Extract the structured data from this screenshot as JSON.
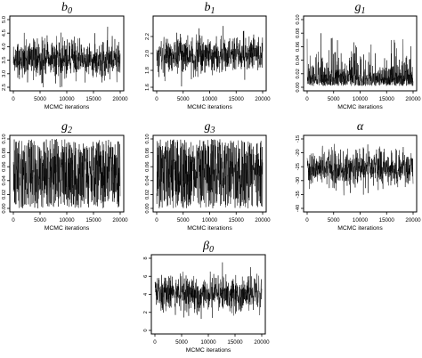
{
  "chart_data": [
    {
      "type": "line",
      "title": "b",
      "title_sub": "0",
      "xlabel": "MCMC iterations",
      "ylabel": "",
      "xlim": [
        0,
        20000
      ],
      "ylim": [
        2.5,
        5.0
      ],
      "xticks": [
        0,
        5000,
        10000,
        15000,
        20000
      ],
      "xtick_labels": [
        "0",
        "5000",
        "10000",
        "15000",
        "20000"
      ],
      "yticks": [
        2.5,
        3.0,
        3.5,
        4.0,
        4.5,
        5.0
      ],
      "ytick_labels": [
        "2.5",
        "3.0",
        "3.5",
        "4.0",
        "4.5",
        "5.0"
      ],
      "trace": {
        "n_iterations": 20000,
        "center": 3.55,
        "spread": 0.35,
        "min": 2.5,
        "max": 5.0,
        "distribution": "normal"
      },
      "grid": false,
      "color": "#000000"
    },
    {
      "type": "line",
      "title": "b",
      "title_sub": "1",
      "xlabel": "MCMC iterations",
      "ylabel": "",
      "xlim": [
        0,
        20000
      ],
      "ylim": [
        1.6,
        2.4
      ],
      "xticks": [
        0,
        5000,
        10000,
        15000,
        20000
      ],
      "xtick_labels": [
        "0",
        "5000",
        "10000",
        "15000",
        "20000"
      ],
      "yticks": [
        1.6,
        1.8,
        2.0,
        2.2
      ],
      "ytick_labels": [
        "1.6",
        "1.8",
        "2.0",
        "2.2"
      ],
      "trace": {
        "n_iterations": 20000,
        "center": 1.98,
        "spread": 0.11,
        "min": 1.6,
        "max": 2.4,
        "distribution": "normal"
      },
      "grid": false,
      "color": "#000000"
    },
    {
      "type": "line",
      "title": "g",
      "title_sub": "1",
      "xlabel": "MCMC iterations",
      "ylabel": "",
      "xlim": [
        0,
        20000
      ],
      "ylim": [
        0,
        0.1
      ],
      "xticks": [
        0,
        5000,
        10000,
        15000,
        20000
      ],
      "xtick_labels": [
        "0",
        "5000",
        "10000",
        "15000",
        "20000"
      ],
      "yticks": [
        0.0,
        0.02,
        0.04,
        0.06,
        0.08,
        0.1
      ],
      "ytick_labels": [
        "0.00",
        "0.02",
        "0.04",
        "0.06",
        "0.08",
        "0.10"
      ],
      "trace": {
        "n_iterations": 20000,
        "center": 0.02,
        "spread": 0.015,
        "min": 0.0,
        "max": 0.1,
        "distribution": "right-skewed"
      },
      "grid": false,
      "color": "#000000"
    },
    {
      "type": "line",
      "title": "g",
      "title_sub": "2",
      "xlabel": "MCMC iterations",
      "ylabel": "",
      "xlim": [
        0,
        20000
      ],
      "ylim": [
        0,
        0.1
      ],
      "xticks": [
        0,
        5000,
        10000,
        15000,
        20000
      ],
      "xtick_labels": [
        "0",
        "5000",
        "10000",
        "15000",
        "20000"
      ],
      "yticks": [
        0.0,
        0.02,
        0.04,
        0.06,
        0.08,
        0.1
      ],
      "ytick_labels": [
        "0.00",
        "0.02",
        "0.04",
        "0.06",
        "0.08",
        "0.10"
      ],
      "trace": {
        "n_iterations": 20000,
        "center": 0.05,
        "spread": 0.029,
        "min": 0.0,
        "max": 0.1,
        "distribution": "uniform"
      },
      "grid": false,
      "color": "#000000"
    },
    {
      "type": "line",
      "title": "g",
      "title_sub": "3",
      "xlabel": "MCMC iterations",
      "ylabel": "",
      "xlim": [
        0,
        20000
      ],
      "ylim": [
        0,
        0.1
      ],
      "xticks": [
        0,
        5000,
        10000,
        15000,
        20000
      ],
      "xtick_labels": [
        "0",
        "5000",
        "10000",
        "15000",
        "20000"
      ],
      "yticks": [
        0.0,
        0.02,
        0.04,
        0.06,
        0.08,
        0.1
      ],
      "ytick_labels": [
        "0.00",
        "0.02",
        "0.04",
        "0.06",
        "0.08",
        "0.10"
      ],
      "trace": {
        "n_iterations": 20000,
        "center": 0.05,
        "spread": 0.029,
        "min": 0.0,
        "max": 0.1,
        "distribution": "uniform"
      },
      "grid": false,
      "color": "#000000"
    },
    {
      "type": "line",
      "title": "α",
      "title_sub": "",
      "xlabel": "MCMC iterations",
      "ylabel": "",
      "xlim": [
        0,
        20000
      ],
      "ylim": [
        -40,
        -15
      ],
      "xticks": [
        0,
        5000,
        10000,
        15000,
        20000
      ],
      "xtick_labels": [
        "0",
        "5000",
        "10000",
        "15000",
        "20000"
      ],
      "yticks": [
        -40,
        -35,
        -30,
        -25,
        -20,
        -15
      ],
      "ytick_labels": [
        "-40",
        "-35",
        "-30",
        "-25",
        "-20",
        "-15"
      ],
      "trace": {
        "n_iterations": 20000,
        "center": -25.5,
        "spread": 3.2,
        "min": -40,
        "max": -15,
        "distribution": "normal"
      },
      "grid": false,
      "color": "#000000"
    },
    {
      "type": "line",
      "title": "β",
      "title_sub": "0",
      "xlabel": "MCMC iterations",
      "ylabel": "",
      "xlim": [
        0,
        20000
      ],
      "ylim": [
        0,
        8
      ],
      "xticks": [
        0,
        5000,
        10000,
        15000,
        20000
      ],
      "xtick_labels": [
        "0",
        "5000",
        "10000",
        "15000",
        "20000"
      ],
      "yticks": [
        0,
        2,
        4,
        6,
        8
      ],
      "ytick_labels": [
        "0",
        "2",
        "4",
        "6",
        "8"
      ],
      "trace": {
        "n_iterations": 20000,
        "center": 4.1,
        "spread": 1.0,
        "min": 0,
        "max": 8,
        "distribution": "normal"
      },
      "grid": false,
      "color": "#000000"
    }
  ]
}
